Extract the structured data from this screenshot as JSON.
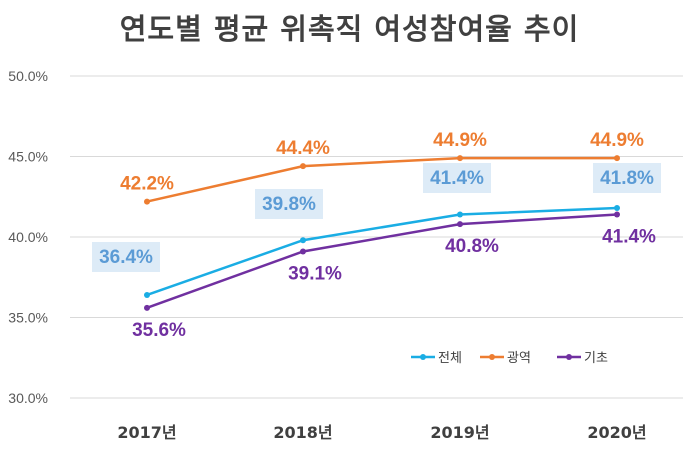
{
  "chart_data": {
    "type": "line",
    "title": "연도별 평균 위촉직 여성참여율 추이",
    "categories": [
      "2017년",
      "2018년",
      "2019년",
      "2020년"
    ],
    "ylim": [
      30,
      50
    ],
    "yticks": [
      30,
      35,
      40,
      45,
      50
    ],
    "ytick_labels": [
      "30.0%",
      "35.0%",
      "40.0%",
      "45.0%",
      "50.0%"
    ],
    "grid": true,
    "legend_position": "bottom-right",
    "series": [
      {
        "name": "전체",
        "values": [
          36.4,
          39.8,
          41.4,
          41.8
        ],
        "labels": [
          "36.4%",
          "39.8%",
          "41.4%",
          "41.8%"
        ],
        "color": "#1AADE4",
        "label_color": "#5B9BD5",
        "label_bg": "#DDEBF7"
      },
      {
        "name": "광역",
        "values": [
          42.2,
          44.4,
          44.9,
          44.9
        ],
        "labels": [
          "42.2%",
          "44.4%",
          "44.9%",
          "44.9%"
        ],
        "color": "#ED7D31",
        "label_color": "#ED7D31"
      },
      {
        "name": "기초",
        "values": [
          35.6,
          39.1,
          40.8,
          41.4
        ],
        "labels": [
          "35.6%",
          "39.1%",
          "40.8%",
          "41.4%"
        ],
        "color": "#7030A0",
        "label_color": "#7030A0"
      }
    ]
  }
}
